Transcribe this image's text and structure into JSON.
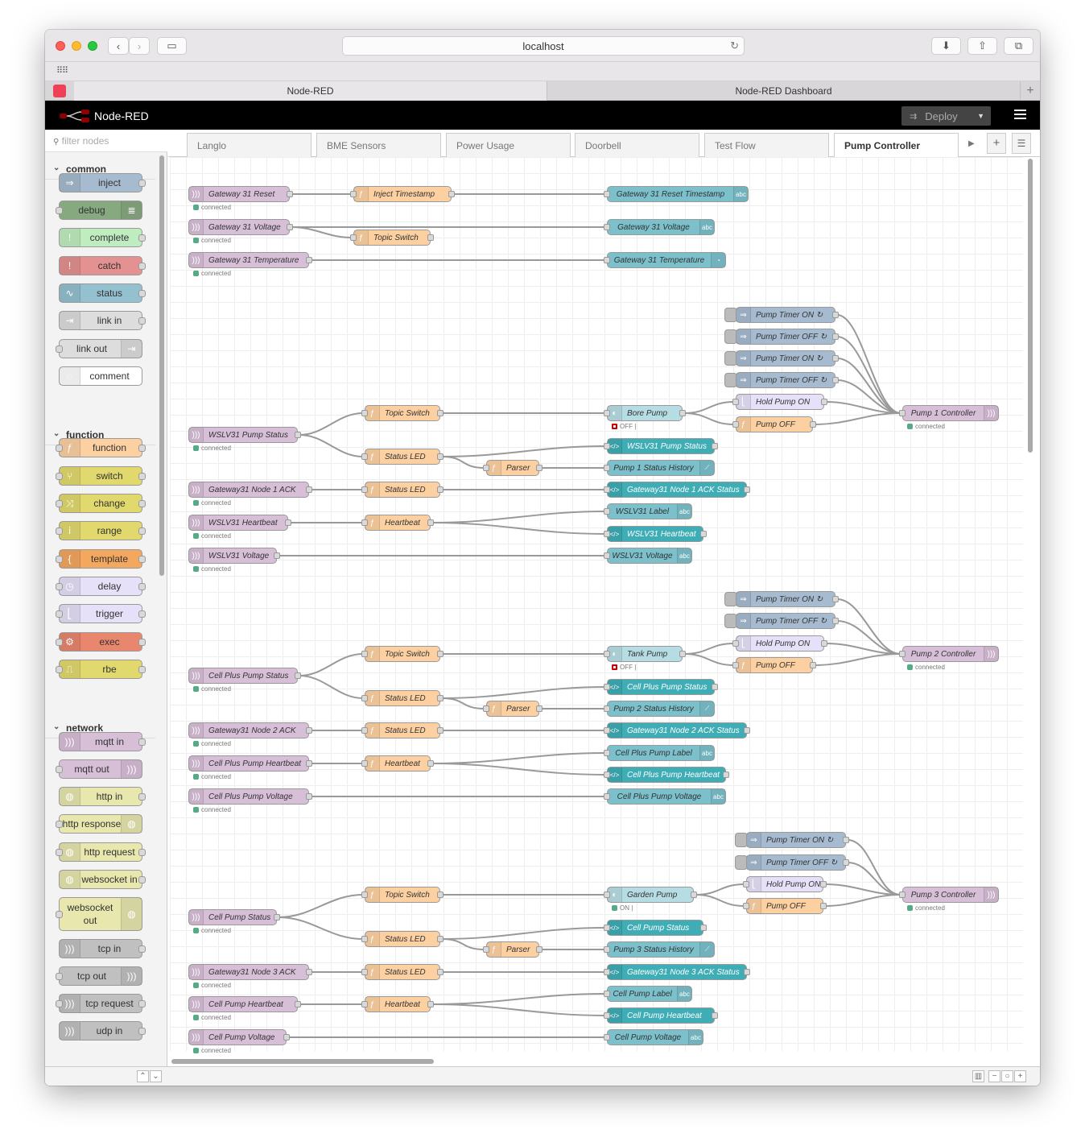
{
  "browser": {
    "url": "localhost",
    "tabs": [
      "Node-RED",
      "Node-RED Dashboard"
    ],
    "new_tab": "+"
  },
  "app": {
    "title": "Node-RED",
    "deploy_label": "Deploy",
    "menu_icon": "hamburger-icon"
  },
  "palette": {
    "filter_placeholder": "filter nodes",
    "categories": [
      {
        "label": "common",
        "nodes": [
          {
            "label": "inject",
            "color": "#a6bbcf"
          },
          {
            "label": "debug",
            "color": "#87a980"
          },
          {
            "label": "complete",
            "color": "#c0edc0"
          },
          {
            "label": "catch",
            "color": "#e49191"
          },
          {
            "label": "status",
            "color": "#94c1d0"
          },
          {
            "label": "link in",
            "color": "#dddddd"
          },
          {
            "label": "link out",
            "color": "#dddddd"
          },
          {
            "label": "comment",
            "color": "#ffffff"
          }
        ]
      },
      {
        "label": "function",
        "nodes": [
          {
            "label": "function",
            "color": "#fdd0a2"
          },
          {
            "label": "switch",
            "color": "#e2d96e"
          },
          {
            "label": "change",
            "color": "#e2d96e"
          },
          {
            "label": "range",
            "color": "#e2d96e"
          },
          {
            "label": "template",
            "color": "#f4a75f"
          },
          {
            "label": "delay",
            "color": "#e6e0f8"
          },
          {
            "label": "trigger",
            "color": "#e6e0f8"
          },
          {
            "label": "exec",
            "color": "#e9866e"
          },
          {
            "label": "rbe",
            "color": "#e2d96e"
          }
        ]
      },
      {
        "label": "network",
        "nodes": [
          {
            "label": "mqtt in",
            "color": "#d8bfd8"
          },
          {
            "label": "mqtt out",
            "color": "#d8bfd8"
          },
          {
            "label": "http in",
            "color": "#e7e7ae"
          },
          {
            "label": "http response",
            "color": "#e7e7ae"
          },
          {
            "label": "http request",
            "color": "#e7e7ae"
          },
          {
            "label": "websocket in",
            "color": "#e7e7ae"
          },
          {
            "label": "websocket out",
            "color": "#e7e7ae"
          },
          {
            "label": "tcp in",
            "color": "#c0c0c0"
          },
          {
            "label": "tcp out",
            "color": "#c0c0c0"
          },
          {
            "label": "tcp request",
            "color": "#c0c0c0"
          },
          {
            "label": "udp in",
            "color": "#c0c0c0"
          }
        ]
      }
    ]
  },
  "workspace": {
    "tabs": [
      "Langlo",
      "BME Sensors",
      "Power Usage",
      "Doorbell",
      "Test Flow",
      "Pump Controller"
    ],
    "active_tab": "Pump Controller",
    "status_connected": "connected",
    "status_off": "OFF |",
    "status_on": "ON |",
    "nodes": {
      "n1": "Gateway 31 Reset",
      "n2": "Inject Timestamp",
      "n3": "Gateway 31 Reset Timestamp",
      "n4": "Gateway 31 Voltage",
      "n5": "Topic Switch",
      "n6": "Gateway 31 Voltage",
      "n7": "Gateway 31 Temperature",
      "n8": "Gateway 31 Temperature",
      "t1": "Pump Timer ON ↻",
      "t2": "Pump Timer OFF ↻",
      "t3": "Pump Timer ON ↻",
      "t4": "Pump Timer OFF ↻",
      "h1": "Hold Pump ON",
      "o1": "Pump OFF",
      "bp": "Bore Pump",
      "ts1": "Topic Switch",
      "pc1": "Pump 1 Controller",
      "w1": "WSLV31 Pump Status",
      "sl1": "Status LED",
      "w1s": "WSLV31 Pump Status",
      "p1": "Parser",
      "ph1": "Pump 1 Status History",
      "g1": "Gateway31 Node 1 ACK",
      "sl1b": "Status LED",
      "g1s": "Gateway31 Node 1 ACK Status",
      "hb1": "WSLV31 Heartbeat",
      "hbf1": "Heartbeat",
      "lbl1": "WSLV31 Label",
      "hbs1": "WSLV31 Heartbeat",
      "v1": "WSLV31 Voltage",
      "v1s": "WSLV31 Voltage",
      "t5": "Pump Timer ON ↻",
      "t6": "Pump Timer OFF ↻",
      "h2": "Hold Pump ON",
      "o2": "Pump OFF",
      "tp": "Tank Pump",
      "ts2": "Topic Switch",
      "pc2": "Pump 2 Controller",
      "c1": "Cell Plus Pump Status",
      "sl2": "Status LED",
      "c1s": "Cell Plus Pump Status",
      "p2": "Parser",
      "ph2": "Pump 2 Status History",
      "g2": "Gateway31 Node 2 ACK",
      "sl2b": "Status LED",
      "g2s": "Gateway31 Node 2 ACK Status",
      "hb2": "Cell Plus Pump Heartbeat",
      "hbf2": "Heartbeat",
      "lbl2": "Cell Plus Pump Label",
      "hbs2": "Cell Plus Pump Heartbeat",
      "v2": "Cell Plus Pump Voltage",
      "v2s": "Cell Plus Pump Voltage",
      "t7": "Pump Timer ON ↻",
      "t8": "Pump Timer OFF ↻",
      "h3": "Hold Pump ON",
      "o3": "Pump OFF",
      "gp": "Garden Pump",
      "ts3": "Topic Switch",
      "pc3": "Pump 3 Controller",
      "c3": "Cell Pump Status",
      "sl3": "Status LED",
      "c3s": "Cell Pump Status",
      "p3": "Parser",
      "ph3": "Pump 3 Status History",
      "g3": "Gateway31 Node 3 ACK",
      "sl3b": "Status LED",
      "g3s": "Gateway31 Node 3 ACK Status",
      "hb3": "Cell Pump Heartbeat",
      "hbf3": "Heartbeat",
      "lbl3": "Cell Pump Label",
      "hbs3": "Cell Pump Heartbeat",
      "v3": "Cell Pump Voltage",
      "v3s": "Cell Pump Voltage"
    }
  }
}
